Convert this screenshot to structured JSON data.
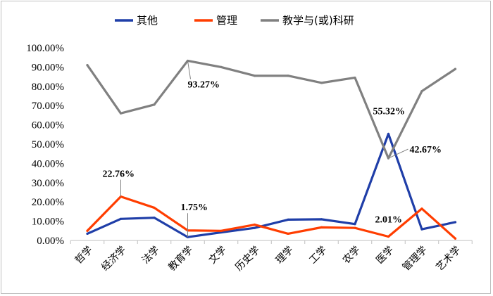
{
  "chart_data": {
    "type": "line",
    "categories": [
      "哲学",
      "经济学",
      "法学",
      "教育学",
      "文学",
      "历史学",
      "理学",
      "工学",
      "农学",
      "医学",
      "管理学",
      "艺术学"
    ],
    "ylim": [
      0,
      100
    ],
    "yticks": [
      "0.00%",
      "10.00%",
      "20.00%",
      "30.00%",
      "40.00%",
      "50.00%",
      "60.00%",
      "70.00%",
      "80.00%",
      "90.00%",
      "100.00%"
    ],
    "legend_position": "top",
    "grid": false,
    "series": [
      {
        "name": "其他",
        "color": "#1f3ea8",
        "values": [
          3.5,
          11.2,
          11.8,
          1.75,
          4.2,
          6.5,
          10.8,
          11.0,
          8.5,
          55.32,
          5.8,
          9.5
        ]
      },
      {
        "name": "管理",
        "color": "#ff3d00",
        "values": [
          5.0,
          22.76,
          17.0,
          5.2,
          5.0,
          8.2,
          3.5,
          6.8,
          6.5,
          2.01,
          16.5,
          1.0
        ]
      },
      {
        "name": "教学与(或)科研",
        "color": "#808080",
        "values": [
          91.0,
          66.0,
          70.5,
          93.27,
          90.0,
          85.5,
          85.5,
          81.8,
          84.5,
          42.67,
          77.5,
          89.0
        ]
      }
    ],
    "annotations": [
      {
        "text": "93.27%",
        "series": 2,
        "index": 3
      },
      {
        "text": "22.76%",
        "series": 1,
        "index": 1
      },
      {
        "text": "1.75%",
        "series": 0,
        "index": 3
      },
      {
        "text": "55.32%",
        "series": 0,
        "index": 9
      },
      {
        "text": "42.67%",
        "series": 2,
        "index": 9
      },
      {
        "text": "2.01%",
        "series": 1,
        "index": 9
      }
    ]
  }
}
